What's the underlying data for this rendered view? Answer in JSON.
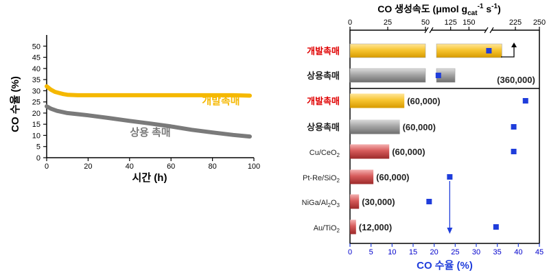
{
  "chart_data": [
    {
      "type": "line",
      "xlabel": "시간 (h)",
      "ylabel": "CO 수율 (%)",
      "xlim": [
        0,
        100
      ],
      "ylim": [
        0,
        55
      ],
      "xticks": [
        0,
        20,
        40,
        60,
        80,
        100
      ],
      "yticks": [
        0,
        5,
        10,
        15,
        20,
        25,
        30,
        35,
        40,
        45,
        50
      ],
      "series": [
        {
          "name": "개발촉매",
          "color": "#f5b800",
          "x": [
            0,
            2,
            4,
            6,
            8,
            10,
            15,
            20,
            30,
            40,
            50,
            60,
            70,
            80,
            90,
            98
          ],
          "y": [
            32,
            30.5,
            29.5,
            29,
            28.5,
            28.2,
            28,
            28,
            28,
            28,
            28,
            28,
            28,
            28,
            28,
            27.8
          ]
        },
        {
          "name": "상용 촉매",
          "color": "#7a7a7a",
          "x": [
            0,
            2,
            5,
            10,
            15,
            20,
            30,
            40,
            50,
            60,
            70,
            80,
            90,
            98
          ],
          "y": [
            23,
            22,
            21,
            20,
            19.5,
            19,
            17.8,
            16.5,
            15.3,
            14,
            12.5,
            11.3,
            10.2,
            9.5
          ]
        }
      ]
    },
    {
      "type": "bar",
      "top_axis_label": "CO 생성속도 (μmol g",
      "top_axis_sub": "cat",
      "top_axis_sup": "-1",
      "top_axis_tail": " s",
      "top_axis_sup2": "-1",
      "top_axis_close": ")",
      "top_ticks_left": [
        "0",
        "25",
        "50"
      ],
      "top_ticks_mid": [
        "125",
        "150"
      ],
      "top_ticks_right": [
        "225",
        "250"
      ],
      "bottom_axis_label": "CO 수율 (%)",
      "bottom_ticks": [
        "0",
        "5",
        "10",
        "15",
        "20",
        "25",
        "30",
        "35",
        "40",
        "45"
      ],
      "bottom_xlim": [
        0,
        45
      ],
      "upper_group": [
        {
          "label": "개발촉매",
          "label_color": "#e00000",
          "rate": 211,
          "yield": 33,
          "color": "gold"
        },
        {
          "label": "상용촉매",
          "label_color": "#222222",
          "rate": 131,
          "yield": 21,
          "color": "gray"
        }
      ],
      "upper_note": "(360,000)",
      "categories": [
        "개발촉매",
        "상용촉매",
        "Cu/CeO2",
        "Pt-Re/SiO2",
        "NiGa/Al2O3",
        "Au/TiO2"
      ],
      "lower_group": [
        {
          "label": "개발촉매",
          "label_color": "#e00000",
          "rate": 36,
          "ghsv": "(60,000)",
          "yield": 41.7,
          "color": "gold"
        },
        {
          "label": "상용촉매",
          "label_color": "#222222",
          "rate": 33,
          "ghsv": "(60,000)",
          "yield": 38.9,
          "color": "gray"
        },
        {
          "label": "Cu/CeO",
          "sub": "2",
          "label_color": "#222222",
          "rate": 26,
          "ghsv": "(60,000)",
          "yield": 38.9,
          "color": "red"
        },
        {
          "label": "Pt-Re/SiO",
          "sub": "2",
          "label_color": "#222222",
          "rate": 15.5,
          "ghsv": "(60,000)",
          "yield": 23.7,
          "color": "red"
        },
        {
          "label": "NiGa/Al",
          "sub": "2",
          "mid": "O",
          "sub2": "3",
          "label_color": "#222222",
          "rate": 6,
          "ghsv": "(30,000)",
          "yield": 18.8,
          "color": "red"
        },
        {
          "label": "Au/TiO",
          "sub": "2",
          "label_color": "#222222",
          "rate": 4,
          "ghsv": "(12,000)",
          "yield": 34.7,
          "color": "red"
        }
      ]
    }
  ]
}
